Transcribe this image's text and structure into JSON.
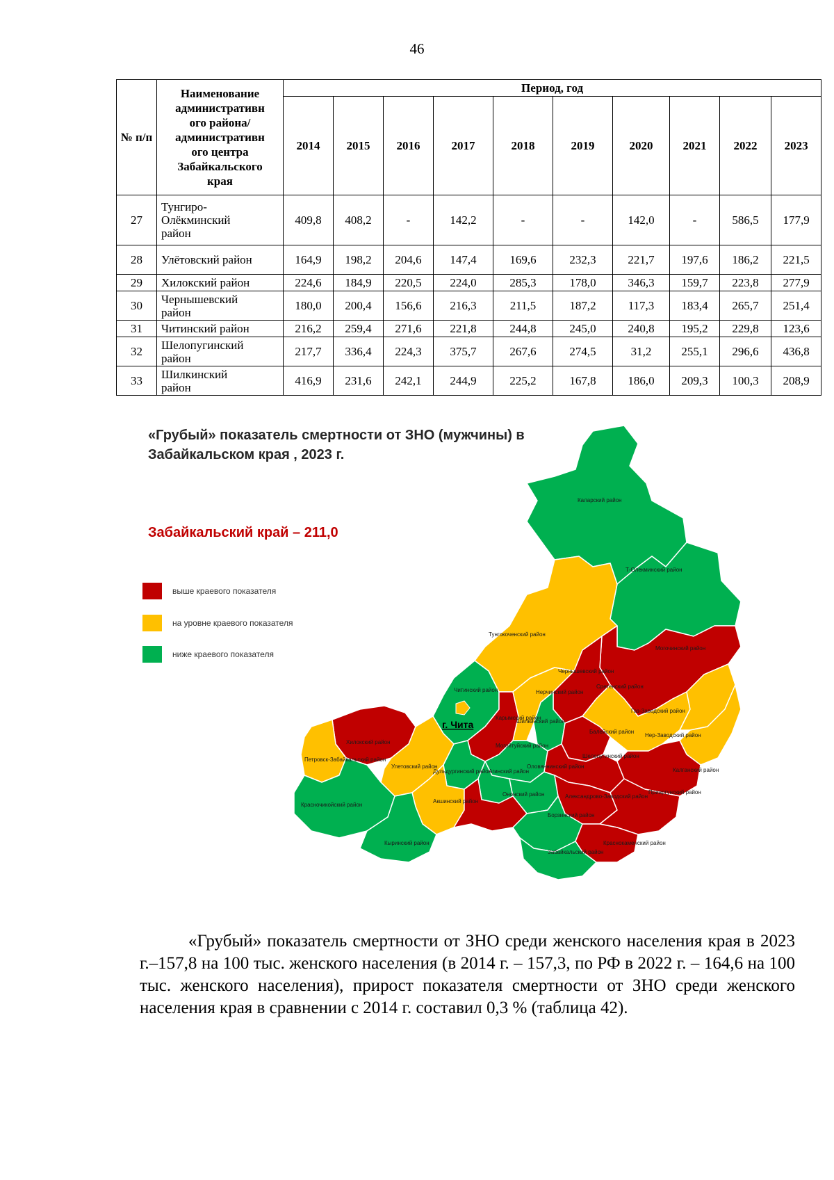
{
  "page_number": "46",
  "table": {
    "col_num_header": "№ п/п",
    "col_name_header": "Наименование административного района/ административного центра Забайкальского края",
    "col_name_header_lines": [
      "Наименование",
      "административн",
      "ого района/",
      "административн",
      "ого центра",
      "Забайкальского",
      "края"
    ],
    "period_header": "Период, год",
    "years": [
      "2014",
      "2015",
      "2016",
      "2017",
      "2018",
      "2019",
      "2020",
      "2021",
      "2022",
      "2023"
    ],
    "rows": [
      {
        "num": "27",
        "name": "Тунгиро-Олёкминский район",
        "name_lines": [
          "Тунгиро-",
          "Олёкминский",
          "район"
        ],
        "values": [
          "409,8",
          "408,2",
          "-",
          "142,2",
          "-",
          "-",
          "142,0",
          "-",
          "586,5",
          "177,9"
        ]
      },
      {
        "num": "28",
        "name": "Улётовский район",
        "name_lines": [
          "Улётовский район"
        ],
        "values": [
          "164,9",
          "198,2",
          "204,6",
          "147,4",
          "169,6",
          "232,3",
          "221,7",
          "197,6",
          "186,2",
          "221,5"
        ]
      },
      {
        "num": "29",
        "name": "Хилокский район",
        "name_lines": [
          "Хилокский район"
        ],
        "values": [
          "224,6",
          "184,9",
          "220,5",
          "224,0",
          "285,3",
          "178,0",
          "346,3",
          "159,7",
          "223,8",
          "277,9"
        ]
      },
      {
        "num": "30",
        "name": "Чернышевский район",
        "name_lines": [
          "Чернышевский",
          "район"
        ],
        "values": [
          "180,0",
          "200,4",
          "156,6",
          "216,3",
          "211,5",
          "187,2",
          "117,3",
          "183,4",
          "265,7",
          "251,4"
        ]
      },
      {
        "num": "31",
        "name": "Читинский район",
        "name_lines": [
          "Читинский район"
        ],
        "values": [
          "216,2",
          "259,4",
          "271,6",
          "221,8",
          "244,8",
          "245,0",
          "240,8",
          "195,2",
          "229,8",
          "123,6"
        ]
      },
      {
        "num": "32",
        "name": "Шелопугинский район",
        "name_lines": [
          "Шелопугинский",
          "район"
        ],
        "values": [
          "217,7",
          "336,4",
          "224,3",
          "375,7",
          "267,6",
          "274,5",
          "31,2",
          "255,1",
          "296,6",
          "436,8"
        ]
      },
      {
        "num": "33",
        "name": "Шилкинский район",
        "name_lines": [
          "Шилкинский",
          "район"
        ],
        "values": [
          "416,9",
          "231,6",
          "242,1",
          "244,9",
          "225,2",
          "167,8",
          "186,0",
          "209,3",
          "100,3",
          "208,9"
        ]
      }
    ]
  },
  "map": {
    "title_line1": "«Грубый» показатель смертности от ЗНО (мужчины) в",
    "title_line2": "Забайкальском края , 2023 г.",
    "subtitle": "Забайкальский край – 211,0",
    "legend": [
      {
        "label": "выше краевого показателя",
        "color": "#c00000"
      },
      {
        "label": "на уровне краевого показателя",
        "color": "#ffc000"
      },
      {
        "label": "ниже краевого показателя",
        "color": "#00b050"
      }
    ],
    "colors": {
      "red": "#c00000",
      "yellow": "#ffc000",
      "green": "#00b050"
    },
    "city_label": "г. Чита",
    "region_labels": [
      "Каларский район",
      "Т-Олекминский район",
      "Тунгокоченский район",
      "Могочинский район",
      "Чернышевский район",
      "Сретенский район",
      "Нерчинский район",
      "Газ-Заводский район",
      "Читинский район",
      "Карымский район",
      "Шилкинский район",
      "Балейский район",
      "Нер-Заводский район",
      "Хилокский район",
      "Могойтуйский район",
      "Шелопугинский район",
      "Калганский район",
      "Петровск-Забайкальский район",
      "Улетовский район",
      "Дульдургинский район",
      "Агинский район",
      "Оловяннинский район",
      "Александрово-Заводский район",
      "Красночикойский район",
      "Акшинский район",
      "Ононский район",
      "Борзинский район",
      "Приаргунский район",
      "Забайкальский район",
      "Краснокаменский район",
      "Кыринский район"
    ]
  },
  "paragraph": "«Грубый» показатель смертности от ЗНО среди женского населения края в 2023 г.–157,8 на 100 тыс. женского населения (в 2014 г. – 157,3, по РФ в 2022 г. – 164,6 на 100 тыс. женского населения), прирост показателя смертности от ЗНО среди женского населения края в сравнении с 2014 г. составил 0,3 % (таблица 42)."
}
